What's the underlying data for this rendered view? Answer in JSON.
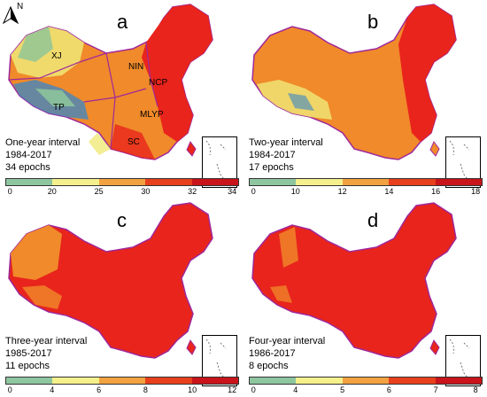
{
  "panels": [
    {
      "letter": "a",
      "interval": "One-year interval",
      "years": "1984-2017",
      "epochs": "34 epochs",
      "legend_ticks": [
        "0",
        "20",
        "25",
        "30",
        "32",
        "34"
      ],
      "legend_colors": [
        "#2b83d6",
        "#8ec6a0",
        "#f5f08c",
        "#f2a240",
        "#e8401c",
        "#c8141a"
      ],
      "regions": [
        "XJ",
        "NIN",
        "NCP",
        "TP",
        "MLYP",
        "SC"
      ],
      "north_label": "N"
    },
    {
      "letter": "b",
      "interval": "Two-year interval",
      "years": "1984-2017",
      "epochs": "17 epochs",
      "legend_ticks": [
        "0",
        "10",
        "12",
        "14",
        "16",
        "18"
      ],
      "legend_colors": [
        "#2b83d6",
        "#8ec6a0",
        "#f5f08c",
        "#f2a240",
        "#e8401c",
        "#c8141a"
      ]
    },
    {
      "letter": "c",
      "interval": "Three-year interval",
      "years": "1985-2017",
      "epochs": "11 epochs",
      "legend_ticks": [
        "0",
        "4",
        "6",
        "8",
        "10",
        "12"
      ],
      "legend_colors": [
        "#2b83d6",
        "#8ec6a0",
        "#f5f08c",
        "#f2a240",
        "#e8401c",
        "#c8141a"
      ]
    },
    {
      "letter": "d",
      "interval": "Four-year interval",
      "years": "1986-2017",
      "epochs": "8 epochs",
      "legend_ticks": [
        "0",
        "4",
        "5",
        "6",
        "7",
        "8"
      ],
      "legend_colors": [
        "#2b83d6",
        "#8ec6a0",
        "#f5f08c",
        "#f2a240",
        "#e8401c",
        "#c8141a"
      ]
    }
  ],
  "map_colors": {
    "outline": "#a0289a",
    "orange": "#f08a2a",
    "red": "#e8241c",
    "yellow": "#f0e878",
    "blue": "#3a86c8",
    "green": "#8cc49a"
  }
}
